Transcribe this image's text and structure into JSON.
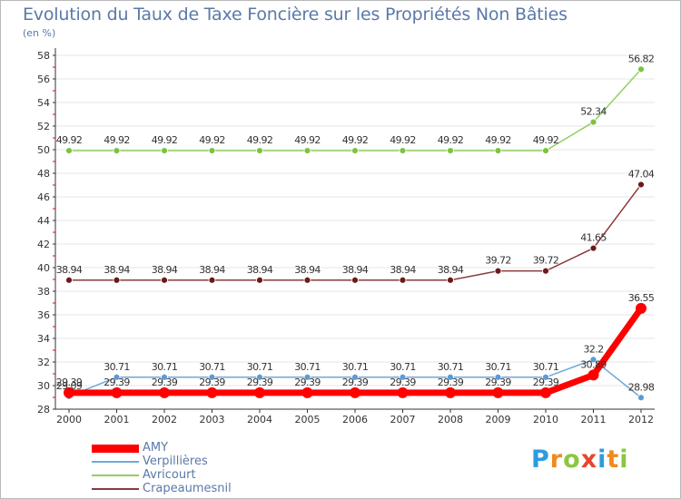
{
  "chart_data": {
    "type": "line",
    "title": "Evolution du Taux de Taxe Foncière sur les Propriétés Non Bâties",
    "ylabel": "(en %)",
    "xlabel": "",
    "x": [
      "2000",
      "2001",
      "2002",
      "2003",
      "2004",
      "2005",
      "2006",
      "2007",
      "2008",
      "2009",
      "2010",
      "2011",
      "2012"
    ],
    "ylim": [
      28,
      58
    ],
    "yticks": [
      28,
      30,
      32,
      34,
      36,
      38,
      40,
      42,
      44,
      46,
      48,
      50,
      52,
      54,
      56,
      58
    ],
    "series": [
      {
        "name": "AMY",
        "color": "#ff0000",
        "values": [
          29.39,
          29.39,
          29.39,
          29.39,
          29.39,
          29.39,
          29.39,
          29.39,
          29.39,
          29.39,
          29.39,
          30.89,
          36.55
        ],
        "labels": [
          "29.39",
          "29.39",
          "29.39",
          "29.39",
          "29.39",
          "29.39",
          "29.39",
          "29.39",
          "29.39",
          "29.39",
          "29.39",
          "30.89",
          "36.55"
        ]
      },
      {
        "name": "Verpillières",
        "color": "#6fa8d6",
        "values": [
          29.09,
          30.71,
          30.71,
          30.71,
          30.71,
          30.71,
          30.71,
          30.71,
          30.71,
          30.71,
          30.71,
          32.2,
          28.98
        ],
        "labels": [
          "29.09",
          "30.71",
          "30.71",
          "30.71",
          "30.71",
          "30.71",
          "30.71",
          "30.71",
          "30.71",
          "30.71",
          "30.71",
          "32.2",
          "28.98"
        ]
      },
      {
        "name": "Avricourt",
        "color": "#90d060",
        "values": [
          49.92,
          49.92,
          49.92,
          49.92,
          49.92,
          49.92,
          49.92,
          49.92,
          49.92,
          49.92,
          49.92,
          52.34,
          56.82
        ],
        "labels": [
          "49.92",
          "49.92",
          "49.92",
          "49.92",
          "49.92",
          "49.92",
          "49.92",
          "49.92",
          "49.92",
          "49.92",
          "49.92",
          "52.34",
          "56.82"
        ]
      },
      {
        "name": "Crapeaumesnil",
        "color": "#8b3a3a",
        "values": [
          38.94,
          38.94,
          38.94,
          38.94,
          38.94,
          38.94,
          38.94,
          38.94,
          38.94,
          39.72,
          39.72,
          41.65,
          47.04
        ],
        "labels": [
          "38.94",
          "38.94",
          "38.94",
          "38.94",
          "38.94",
          "38.94",
          "38.94",
          "38.94",
          "38.94",
          "39.72",
          "39.72",
          "41.65",
          "47.04"
        ]
      }
    ],
    "legend_position": "bottom-left",
    "grid": true
  },
  "colors": {
    "title": "#5a79a8",
    "axis": "#333333",
    "grid": "#e6e6e6",
    "marker_AMY": "#ff0000",
    "marker_Verpillieres": "#5b9bd5",
    "marker_Avricourt": "#7cc242",
    "marker_Crapeaumesnil": "#6b1a1a"
  },
  "logo": {
    "letters": [
      "P",
      "r",
      "o",
      "x",
      "i",
      "t",
      "i"
    ],
    "letter_colors": [
      "#2d9be0",
      "#f18a1c",
      "#8cc63f",
      "#e8452c",
      "#2d9be0",
      "#f18a1c",
      "#8cc63f"
    ],
    "icon_name": "proxiti-logo"
  }
}
